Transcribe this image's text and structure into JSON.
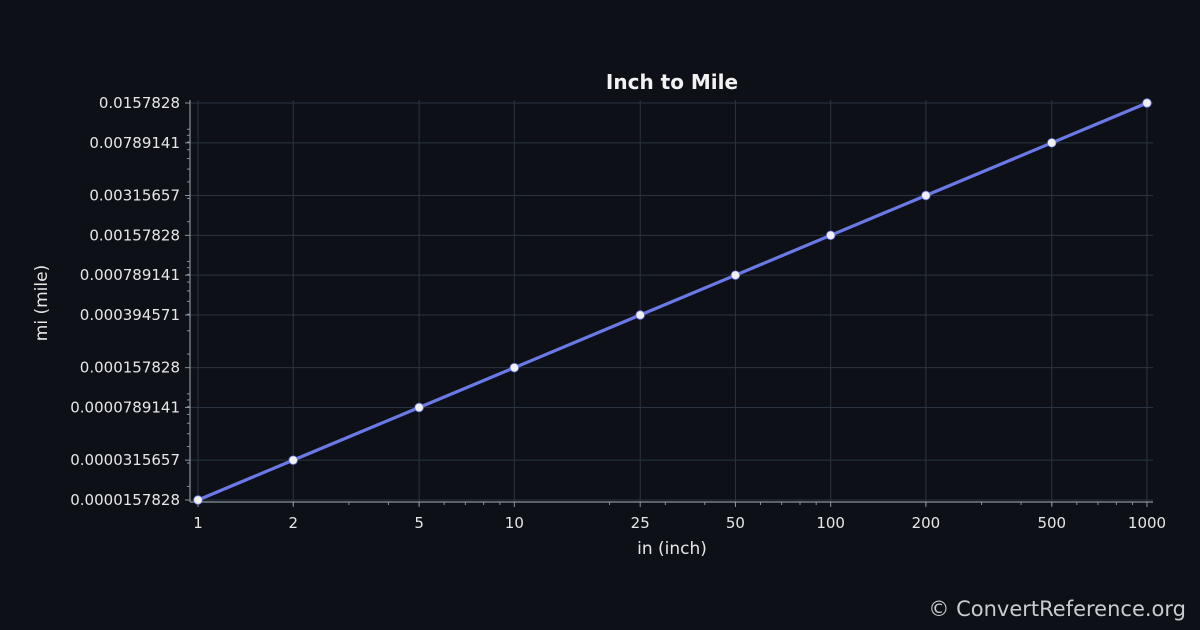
{
  "chart_data": {
    "type": "line",
    "title": "Inch to Mile",
    "xlabel": "in (inch)",
    "ylabel": "mi (mile)",
    "x_scale": "log",
    "y_scale": "log",
    "xlim": [
      1,
      1000
    ],
    "ylim": [
      1.57828e-05,
      0.0157828
    ],
    "grid": true,
    "x_ticks": [
      "1",
      "2",
      "5",
      "10",
      "25",
      "50",
      "100",
      "200",
      "500",
      "1000"
    ],
    "y_ticks": [
      "0.0000157828",
      "0.0000315657",
      "0.0000789141",
      "0.000157828",
      "0.000394571",
      "0.000789141",
      "0.00157828",
      "0.00315657",
      "0.00789141",
      "0.0157828"
    ],
    "series": [
      {
        "color": "#6b79e6",
        "x": [
          1,
          2,
          5,
          10,
          25,
          50,
          100,
          200,
          500,
          1000
        ],
        "y": [
          1.57828e-05,
          3.15657e-05,
          7.89141e-05,
          0.000157828,
          0.000394571,
          0.000789141,
          0.00157828,
          0.00315657,
          0.00789141,
          0.0157828
        ]
      }
    ]
  },
  "colors": {
    "background": "#0d1117",
    "line": "#6b79e6",
    "marker": "#f0f0f0",
    "grid": "#2a3340",
    "axis": "#8b929c"
  },
  "watermark": "© ConvertReference.org"
}
